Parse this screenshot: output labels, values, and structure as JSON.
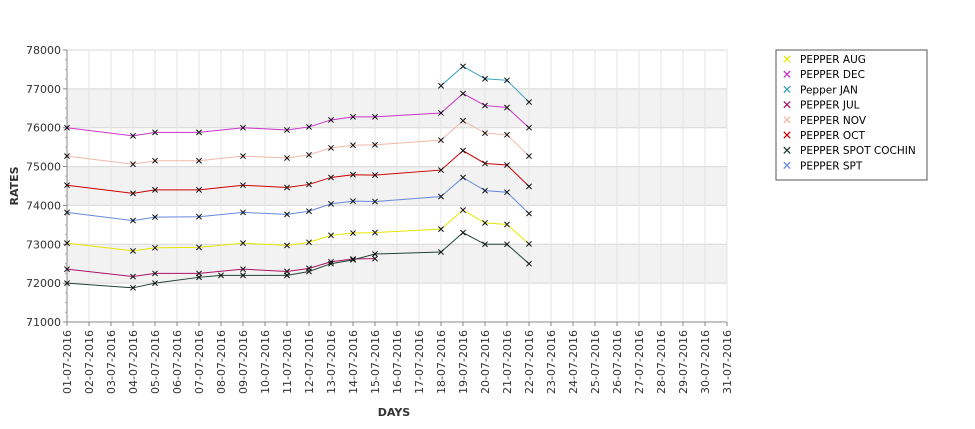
{
  "chart_data": {
    "type": "line",
    "title": "",
    "xlabel": "DAYS",
    "ylabel": "RATES",
    "ylim": [
      71000,
      78000
    ],
    "yticks": [
      71000,
      72000,
      73000,
      74000,
      75000,
      76000,
      77000,
      78000
    ],
    "grid": true,
    "legend_position": "right",
    "x": [
      "01-07-2016",
      "02-07-2016",
      "03-07-2016",
      "04-07-2016",
      "05-07-2016",
      "06-07-2016",
      "07-07-2016",
      "08-07-2016",
      "09-07-2016",
      "10-07-2016",
      "11-07-2016",
      "12-07-2016",
      "13-07-2016",
      "14-07-2016",
      "15-07-2016",
      "16-07-2016",
      "17-07-2016",
      "18-07-2016",
      "19-07-2016",
      "20-07-2016",
      "21-07-2016",
      "22-07-2016",
      "23-07-2016",
      "24-07-2016",
      "25-07-2016",
      "26-07-2016",
      "27-07-2016",
      "28-07-2016",
      "29-07-2016",
      "30-07-2016",
      "31-07-2016"
    ],
    "series": [
      {
        "name": "PEPPER AUG",
        "color": "#e6e600",
        "points": [
          [
            "01-07-2016",
            73030
          ],
          [
            "04-07-2016",
            72830
          ],
          [
            "05-07-2016",
            72910
          ],
          [
            "07-07-2016",
            72920
          ],
          [
            "09-07-2016",
            73030
          ],
          [
            "11-07-2016",
            72970
          ],
          [
            "12-07-2016",
            73050
          ],
          [
            "13-07-2016",
            73230
          ],
          [
            "14-07-2016",
            73290
          ],
          [
            "15-07-2016",
            73300
          ],
          [
            "18-07-2016",
            73390
          ],
          [
            "19-07-2016",
            73880
          ],
          [
            "20-07-2016",
            73550
          ],
          [
            "21-07-2016",
            73510
          ],
          [
            "22-07-2016",
            73010
          ]
        ]
      },
      {
        "name": "PEPPER DEC",
        "color": "#cc33cc",
        "points": [
          [
            "01-07-2016",
            76000
          ],
          [
            "04-07-2016",
            75790
          ],
          [
            "05-07-2016",
            75880
          ],
          [
            "07-07-2016",
            75880
          ],
          [
            "09-07-2016",
            76000
          ],
          [
            "11-07-2016",
            75940
          ],
          [
            "12-07-2016",
            76020
          ],
          [
            "13-07-2016",
            76200
          ],
          [
            "14-07-2016",
            76280
          ],
          [
            "15-07-2016",
            76280
          ],
          [
            "18-07-2016",
            76380
          ],
          [
            "19-07-2016",
            76880
          ],
          [
            "20-07-2016",
            76570
          ],
          [
            "21-07-2016",
            76520
          ],
          [
            "22-07-2016",
            76000
          ]
        ]
      },
      {
        "name": "Pepper JAN",
        "color": "#33a0c0",
        "points": [
          [
            "18-07-2016",
            77080
          ],
          [
            "19-07-2016",
            77580
          ],
          [
            "20-07-2016",
            77260
          ],
          [
            "21-07-2016",
            77220
          ],
          [
            "22-07-2016",
            76660
          ]
        ]
      },
      {
        "name": "PEPPER JUL",
        "color": "#aa1166",
        "points": [
          [
            "01-07-2016",
            72360
          ],
          [
            "04-07-2016",
            72170
          ],
          [
            "05-07-2016",
            72250
          ],
          [
            "07-07-2016",
            72250
          ],
          [
            "09-07-2016",
            72360
          ],
          [
            "11-07-2016",
            72300
          ],
          [
            "12-07-2016",
            72380
          ],
          [
            "13-07-2016",
            72550
          ],
          [
            "14-07-2016",
            72620
          ],
          [
            "15-07-2016",
            72630
          ]
        ]
      },
      {
        "name": "PEPPER NOV",
        "color": "#f0b8a8",
        "points": [
          [
            "01-07-2016",
            75270
          ],
          [
            "04-07-2016",
            75060
          ],
          [
            "05-07-2016",
            75150
          ],
          [
            "07-07-2016",
            75150
          ],
          [
            "09-07-2016",
            75270
          ],
          [
            "11-07-2016",
            75220
          ],
          [
            "12-07-2016",
            75300
          ],
          [
            "13-07-2016",
            75480
          ],
          [
            "14-07-2016",
            75550
          ],
          [
            "15-07-2016",
            75560
          ],
          [
            "18-07-2016",
            75680
          ],
          [
            "19-07-2016",
            76180
          ],
          [
            "20-07-2016",
            75860
          ],
          [
            "21-07-2016",
            75820
          ],
          [
            "22-07-2016",
            75270
          ]
        ]
      },
      {
        "name": "PEPPER OCT",
        "color": "#cc0000",
        "points": [
          [
            "01-07-2016",
            74520
          ],
          [
            "04-07-2016",
            74310
          ],
          [
            "05-07-2016",
            74400
          ],
          [
            "07-07-2016",
            74400
          ],
          [
            "09-07-2016",
            74520
          ],
          [
            "11-07-2016",
            74460
          ],
          [
            "12-07-2016",
            74540
          ],
          [
            "13-07-2016",
            74720
          ],
          [
            "14-07-2016",
            74790
          ],
          [
            "15-07-2016",
            74780
          ],
          [
            "18-07-2016",
            74910
          ],
          [
            "19-07-2016",
            75410
          ],
          [
            "20-07-2016",
            75080
          ],
          [
            "21-07-2016",
            75040
          ],
          [
            "22-07-2016",
            74490
          ]
        ]
      },
      {
        "name": "PEPPER SPOT COCHIN",
        "color": "#224433",
        "points": [
          [
            "01-07-2016",
            72000
          ],
          [
            "04-07-2016",
            71880
          ],
          [
            "05-07-2016",
            72000
          ],
          [
            "07-07-2016",
            72150
          ],
          [
            "08-07-2016",
            72200
          ],
          [
            "09-07-2016",
            72200
          ],
          [
            "11-07-2016",
            72200
          ],
          [
            "12-07-2016",
            72300
          ],
          [
            "13-07-2016",
            72500
          ],
          [
            "14-07-2016",
            72600
          ],
          [
            "15-07-2016",
            72750
          ],
          [
            "18-07-2016",
            72800
          ],
          [
            "19-07-2016",
            73300
          ],
          [
            "20-07-2016",
            73000
          ],
          [
            "21-07-2016",
            73000
          ],
          [
            "22-07-2016",
            72500
          ]
        ]
      },
      {
        "name": "PEPPER SPT",
        "color": "#6688dd",
        "points": [
          [
            "01-07-2016",
            73820
          ],
          [
            "04-07-2016",
            73610
          ],
          [
            "05-07-2016",
            73700
          ],
          [
            "07-07-2016",
            73710
          ],
          [
            "09-07-2016",
            73820
          ],
          [
            "11-07-2016",
            73770
          ],
          [
            "12-07-2016",
            73850
          ],
          [
            "13-07-2016",
            74040
          ],
          [
            "14-07-2016",
            74110
          ],
          [
            "15-07-2016",
            74100
          ],
          [
            "18-07-2016",
            74230
          ],
          [
            "19-07-2016",
            74720
          ],
          [
            "20-07-2016",
            74380
          ],
          [
            "21-07-2016",
            74340
          ],
          [
            "22-07-2016",
            73790
          ]
        ]
      }
    ]
  }
}
